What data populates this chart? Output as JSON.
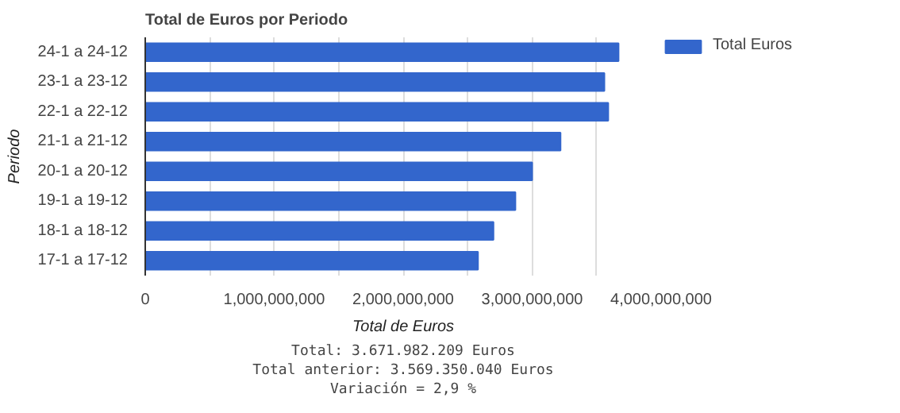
{
  "chart_data": {
    "type": "bar",
    "orientation": "horizontal",
    "title": "Total de Euros por Periodo",
    "xlabel": "Total de Euros",
    "ylabel": "Periodo",
    "categories": [
      "24-1 a 24-12",
      "23-1 a 23-12",
      "22-1 a 22-12",
      "21-1 a 21-12",
      "20-1 a 20-12",
      "19-1 a 19-12",
      "18-1 a 18-12",
      "17-1 a 17-12"
    ],
    "series": [
      {
        "name": "Total Euros",
        "color": "#3366cc",
        "values": [
          3670000000,
          3560000000,
          3590000000,
          3220000000,
          3000000000,
          2870000000,
          2700000000,
          2580000000
        ]
      }
    ],
    "xlim": [
      0,
      4000000000
    ],
    "xticks": [
      0,
      {
        "value": 500000000,
        "label": null
      },
      "1,000,000,000",
      {
        "value": 1500000000,
        "label": null
      },
      {
        "value": 2000000000,
        "label": "2,000,000,000"
      },
      {
        "value": 2500000000,
        "label": null
      },
      {
        "value": 3000000000,
        "label": "3,000,000,000"
      },
      {
        "value": 3500000000,
        "label": null
      },
      {
        "value": 4000000000,
        "label": "4,000,000,000"
      }
    ],
    "grid": "x",
    "legend": "right",
    "annotations": [
      "Total: 3.671.982.209 Euros",
      "Total anterior: 3.569.350.040 Euros",
      "Variación = 2,9 %"
    ]
  }
}
